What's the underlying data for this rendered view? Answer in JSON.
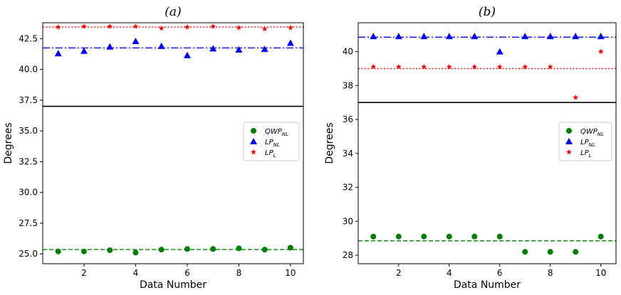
{
  "chart_data": [
    {
      "type": "scatter",
      "title": "(a)",
      "xlabel": "Data Number",
      "ylabel": "Degrees",
      "xlim": [
        0.4,
        10.5
      ],
      "ylim": [
        24.2,
        43.8
      ],
      "xticks": [
        2,
        4,
        6,
        8,
        10
      ],
      "yticks": [
        25.0,
        27.5,
        30.0,
        32.5,
        35.0,
        37.5,
        40.0,
        42.5
      ],
      "ytick_labels": [
        "25.0",
        "27.5",
        "30.0",
        "32.5",
        "35.0",
        "37.5",
        "40.0",
        "42.5"
      ],
      "x": [
        1,
        2,
        3,
        4,
        5,
        6,
        7,
        8,
        9,
        10
      ],
      "series": [
        {
          "name": "QWP",
          "sub": "NL",
          "marker": "circle",
          "color": "#008000",
          "values": [
            25.2,
            25.2,
            25.3,
            25.1,
            25.35,
            25.4,
            25.4,
            25.45,
            25.35,
            25.5
          ],
          "mean": 25.35,
          "linestyle": "dashed"
        },
        {
          "name": "LP",
          "sub": "NL",
          "marker": "triangle",
          "color": "#0000ff",
          "values": [
            41.3,
            41.5,
            41.85,
            42.3,
            41.9,
            41.15,
            41.7,
            41.6,
            41.65,
            42.15
          ],
          "mean": 41.75,
          "linestyle": "dashdot"
        },
        {
          "name": "LP",
          "sub": "L",
          "marker": "star",
          "color": "#ff0000",
          "values": [
            43.45,
            43.5,
            43.5,
            43.5,
            43.35,
            43.45,
            43.5,
            43.4,
            43.3,
            43.4
          ],
          "mean": 43.45,
          "linestyle": "dotted"
        }
      ],
      "reference_line": 37.0,
      "legend": "center-right"
    },
    {
      "type": "scatter",
      "title": "(b)",
      "xlabel": "Data Number",
      "ylabel": "Degrees",
      "xlim": [
        0.4,
        10.6
      ],
      "ylim": [
        27.5,
        41.7
      ],
      "xticks": [
        2,
        4,
        6,
        8,
        10
      ],
      "yticks": [
        28,
        30,
        32,
        34,
        36,
        38,
        40
      ],
      "ytick_labels": [
        "28",
        "30",
        "32",
        "34",
        "36",
        "38",
        "40"
      ],
      "x": [
        1,
        2,
        3,
        4,
        5,
        6,
        7,
        8,
        9,
        10
      ],
      "series": [
        {
          "name": "QWP",
          "sub": "NL",
          "marker": "circle",
          "color": "#008000",
          "values": [
            29.1,
            29.1,
            29.1,
            29.1,
            29.1,
            29.1,
            28.2,
            28.2,
            28.2,
            29.1
          ],
          "mean": 28.85,
          "linestyle": "dashed"
        },
        {
          "name": "LP",
          "sub": "NL",
          "marker": "triangle",
          "color": "#0000ff",
          "values": [
            40.9,
            40.9,
            40.9,
            40.9,
            40.9,
            40.0,
            40.9,
            40.9,
            40.9,
            40.9
          ],
          "mean": 40.85,
          "linestyle": "dashdot"
        },
        {
          "name": "LP",
          "sub": "L",
          "marker": "star",
          "color": "#ff0000",
          "values": [
            39.1,
            39.1,
            39.1,
            39.1,
            39.1,
            39.1,
            39.1,
            39.1,
            37.3,
            40.0
          ],
          "mean": 39.0,
          "linestyle": "dotted"
        }
      ],
      "reference_line": 37.0,
      "legend": "center-right"
    }
  ]
}
